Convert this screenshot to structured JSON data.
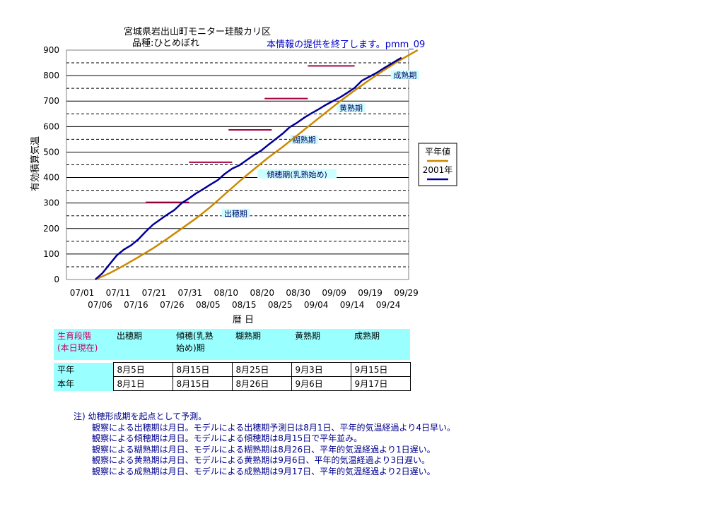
{
  "chart_data": {
    "type": "line",
    "title_line1": "宮城県岩出山町モニター珪酸カリ区",
    "title_line2": "品種:ひとめぼれ",
    "notice": "本情報の提供を終了します。pmm_09",
    "ylabel": "有効積算気温",
    "xlabel": "暦 日",
    "ylim": [
      0,
      900
    ],
    "y_ticks": [
      0,
      100,
      200,
      300,
      400,
      500,
      600,
      700,
      800,
      900
    ],
    "x_ticks_upper": [
      "07/01",
      "07/11",
      "07/21",
      "07/31",
      "08/10",
      "08/20",
      "08/30",
      "09/09",
      "09/19",
      "09/29"
    ],
    "x_ticks_lower": [
      "07/06",
      "07/16",
      "07/26",
      "08/05",
      "08/15",
      "08/25",
      "09/04",
      "09/14",
      "09/24"
    ],
    "x_day_range": [
      0,
      95
    ],
    "grid": "solid at 100s, dashed at 50s",
    "legend_position": "right",
    "series": [
      {
        "name": "平年値",
        "color": "#cc8800",
        "points": [
          [
            8,
            0
          ],
          [
            12,
            25
          ],
          [
            16,
            55
          ],
          [
            20,
            88
          ],
          [
            24,
            122
          ],
          [
            28,
            160
          ],
          [
            32,
            200
          ],
          [
            36,
            240
          ],
          [
            40,
            285
          ],
          [
            44,
            335
          ],
          [
            48,
            385
          ],
          [
            52,
            432
          ],
          [
            56,
            478
          ],
          [
            60,
            520
          ],
          [
            64,
            565
          ],
          [
            68,
            610
          ],
          [
            72,
            655
          ],
          [
            76,
            700
          ],
          [
            80,
            742
          ],
          [
            84,
            782
          ],
          [
            88,
            820
          ],
          [
            92,
            856
          ],
          [
            96,
            888
          ],
          [
            97.5,
            900
          ]
        ]
      },
      {
        "name": "2001年",
        "color": "#000099",
        "points": [
          [
            8,
            0
          ],
          [
            10,
            25
          ],
          [
            12,
            60
          ],
          [
            14,
            95
          ],
          [
            16,
            118
          ],
          [
            18,
            135
          ],
          [
            20,
            158
          ],
          [
            22,
            188
          ],
          [
            24,
            215
          ],
          [
            26,
            235
          ],
          [
            28,
            255
          ],
          [
            30,
            273
          ],
          [
            32,
            300
          ],
          [
            34,
            318
          ],
          [
            36,
            338
          ],
          [
            38,
            355
          ],
          [
            40,
            373
          ],
          [
            42,
            390
          ],
          [
            44,
            415
          ],
          [
            46,
            435
          ],
          [
            48,
            448
          ],
          [
            50,
            468
          ],
          [
            52,
            488
          ],
          [
            54,
            505
          ],
          [
            56,
            528
          ],
          [
            58,
            550
          ],
          [
            60,
            572
          ],
          [
            62,
            598
          ],
          [
            64,
            615
          ],
          [
            66,
            635
          ],
          [
            68,
            652
          ],
          [
            70,
            668
          ],
          [
            72,
            685
          ],
          [
            74,
            700
          ],
          [
            76,
            715
          ],
          [
            78,
            733
          ],
          [
            80,
            752
          ],
          [
            82,
            780
          ],
          [
            84,
            795
          ],
          [
            86,
            810
          ],
          [
            88,
            828
          ],
          [
            90,
            845
          ],
          [
            92,
            862
          ],
          [
            93,
            870
          ]
        ]
      }
    ],
    "stage_marks": [
      {
        "label": "出穂期",
        "level": 303,
        "day_from": 22,
        "day_to": 34,
        "label_day": 47,
        "label_value": 250
      },
      {
        "label": "傾穂期(乳熟始め)",
        "level": 460,
        "day_from": 34,
        "day_to": 46,
        "label_day": 64,
        "label_value": 405
      },
      {
        "label": "糊熟期",
        "level": 587,
        "day_from": 45,
        "day_to": 57,
        "label_day": 66,
        "label_value": 540
      },
      {
        "label": "黄熟期",
        "level": 710,
        "day_from": 55,
        "day_to": 67,
        "label_day": 79,
        "label_value": 665
      },
      {
        "label": "成熟期",
        "level": 838,
        "day_from": 67,
        "day_to": 80,
        "label_day": 94,
        "label_value": 793
      }
    ]
  },
  "stage_table": {
    "corner_label": "生育段階\n(本日現在)",
    "headers": [
      "出穂期",
      "傾穂(乳熟\n始め)期",
      "糊熟期",
      "黄熟期",
      "成熟期"
    ],
    "rows": [
      {
        "label": "平年",
        "values": [
          "8月5日",
          "8月15日",
          "8月25日",
          "9月3日",
          "9月15日"
        ]
      },
      {
        "label": "本年",
        "values": [
          "8月1日",
          "8月15日",
          "8月26日",
          "9月6日",
          "9月17日"
        ]
      }
    ]
  },
  "notes": {
    "title": "注) 幼穂形成期を起点として予測。",
    "lines": [
      "観察による出穂期は月日。モデルによる出穂期予測日は8月1日、平年的気温経過より4日早い。",
      "観察による傾穂期は月日。モデルによる傾穂期は8月15日で平年並み。",
      "観察による糊熟期は月日、モデルによる糊熟期は8月26日、平年的気温経過より1日遅い。",
      "観察による黄熟期は月日、モデルによる黄熟期は9月6日、平年的気温経過より3日遅い。",
      "観察による成熟期は月日、モデルによる成熟期は9月17日、平年的気温経過より2日遅い。"
    ]
  }
}
